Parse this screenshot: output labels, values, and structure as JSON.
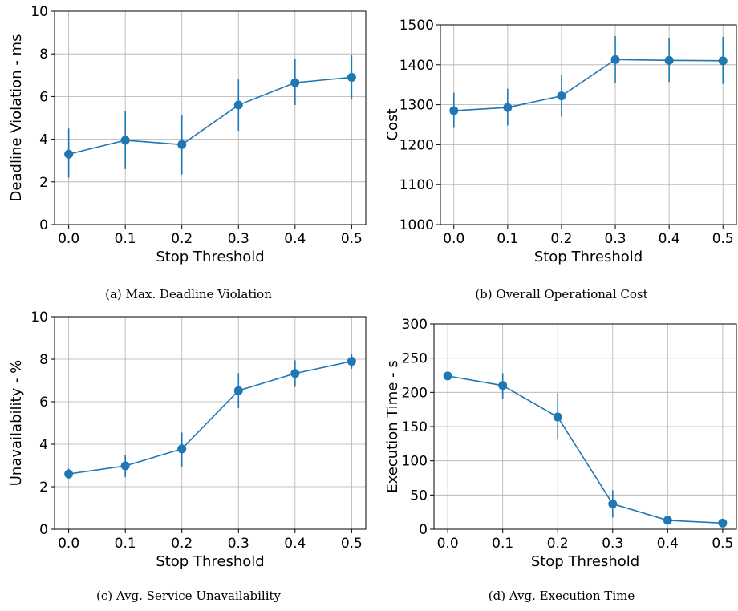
{
  "colors": {
    "series": "#1f77b4",
    "grid": "#b0b0b0"
  },
  "chart_data": [
    {
      "type": "line",
      "panel": "a",
      "caption": "(a) Max. Deadline Violation",
      "xlabel": "Stop Threshold",
      "ylabel": "Deadline Violation - ms",
      "x": [
        0.0,
        0.1,
        0.2,
        0.3,
        0.4,
        0.5
      ],
      "y": [
        3.3,
        3.95,
        3.75,
        5.6,
        6.65,
        6.9
      ],
      "err_low": [
        2.2,
        2.6,
        2.35,
        4.4,
        5.6,
        5.9
      ],
      "err_high": [
        4.5,
        5.3,
        5.15,
        6.8,
        7.75,
        7.95
      ],
      "xticks": [
        "0.0",
        "0.1",
        "0.2",
        "0.3",
        "0.4",
        "0.5"
      ],
      "yticks": [
        0,
        2,
        4,
        6,
        8,
        10
      ],
      "xlim": [
        -0.025,
        0.525
      ],
      "ylim": [
        0,
        10
      ],
      "grid": true
    },
    {
      "type": "line",
      "panel": "b",
      "caption": "(b) Overall Operational Cost",
      "xlabel": "Stop Threshold",
      "ylabel": "Cost",
      "x": [
        0.0,
        0.1,
        0.2,
        0.3,
        0.4,
        0.5
      ],
      "y": [
        1285,
        1293,
        1322,
        1413,
        1411,
        1410
      ],
      "err_low": [
        1242,
        1248,
        1270,
        1355,
        1357,
        1352
      ],
      "err_high": [
        1330,
        1340,
        1375,
        1472,
        1467,
        1470
      ],
      "xticks": [
        "0.0",
        "0.1",
        "0.2",
        "0.3",
        "0.4",
        "0.5"
      ],
      "yticks": [
        1000,
        1100,
        1200,
        1300,
        1400,
        1500
      ],
      "xlim": [
        -0.025,
        0.525
      ],
      "ylim": [
        1000,
        1500
      ],
      "grid": true
    },
    {
      "type": "line",
      "panel": "c",
      "caption": "(c) Avg. Service Unavailability",
      "xlabel": "Stop Threshold",
      "ylabel": "Unavailability - %",
      "x": [
        0.0,
        0.1,
        0.2,
        0.3,
        0.4,
        0.5
      ],
      "y": [
        2.6,
        2.98,
        3.78,
        6.52,
        7.33,
        7.9
      ],
      "err_low": [
        2.35,
        2.45,
        2.95,
        5.7,
        6.7,
        7.55
      ],
      "err_high": [
        2.85,
        3.5,
        4.55,
        7.35,
        7.95,
        8.25
      ],
      "xticks": [
        "0.0",
        "0.1",
        "0.2",
        "0.3",
        "0.4",
        "0.5"
      ],
      "yticks": [
        0,
        2,
        4,
        6,
        8,
        10
      ],
      "xlim": [
        -0.025,
        0.525
      ],
      "ylim": [
        0,
        10
      ],
      "grid": true
    },
    {
      "type": "line",
      "panel": "d",
      "caption": "(d) Avg. Execution Time",
      "xlabel": "Stop Threshold",
      "ylabel": "Execution Time - s",
      "x": [
        0.0,
        0.1,
        0.2,
        0.3,
        0.4,
        0.5
      ],
      "y": [
        224,
        210,
        164,
        37,
        13,
        9
      ],
      "err_low": [
        219,
        191,
        131,
        17,
        10,
        6
      ],
      "err_high": [
        230,
        228,
        199,
        57,
        16,
        12
      ],
      "xticks": [
        "0.0",
        "0.1",
        "0.2",
        "0.3",
        "0.4",
        "0.5"
      ],
      "yticks": [
        0,
        50,
        100,
        150,
        200,
        250,
        300
      ],
      "xlim": [
        -0.025,
        0.525
      ],
      "ylim": [
        0,
        300
      ],
      "grid": true
    }
  ]
}
